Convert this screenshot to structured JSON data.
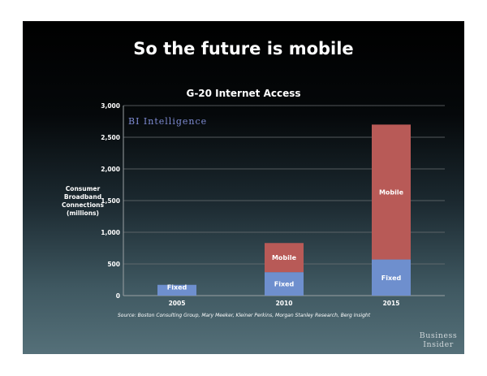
{
  "slide": {
    "headline": "So the future is mobile",
    "source": "Source: Boston Consulting Group, Mary Meeker, Kleiner Perkins, Morgan Stanley Research, Berg Insight",
    "logo_line1": "Business",
    "logo_line2": "Insider"
  },
  "chart_data": {
    "type": "bar",
    "stacked": true,
    "title": "G-20 Internet Access",
    "ylabel": [
      "Consumer",
      "Broadband",
      "Connections",
      "(millions)"
    ],
    "xlabel": "",
    "categories": [
      "2005",
      "2010",
      "2015"
    ],
    "series": [
      {
        "name": "Fixed",
        "values": [
          170,
          370,
          570
        ],
        "segment_labels": [
          "Fixed",
          "Fixed",
          "Fixed"
        ],
        "color": "#6e8fce"
      },
      {
        "name": "Mobile",
        "values": [
          0,
          460,
          2130
        ],
        "segment_labels": [
          "",
          "Mobile",
          "Mobile"
        ],
        "color": "#b85a57"
      }
    ],
    "ylim": [
      0,
      3000
    ],
    "yticks": [
      0,
      500,
      1000,
      1500,
      2000,
      2500,
      3000
    ],
    "ytick_labels": [
      "0",
      "500",
      "1,000",
      "1,500",
      "2,000",
      "2,500",
      "3,000"
    ],
    "grid": true,
    "watermark": "BI Intelligence"
  }
}
